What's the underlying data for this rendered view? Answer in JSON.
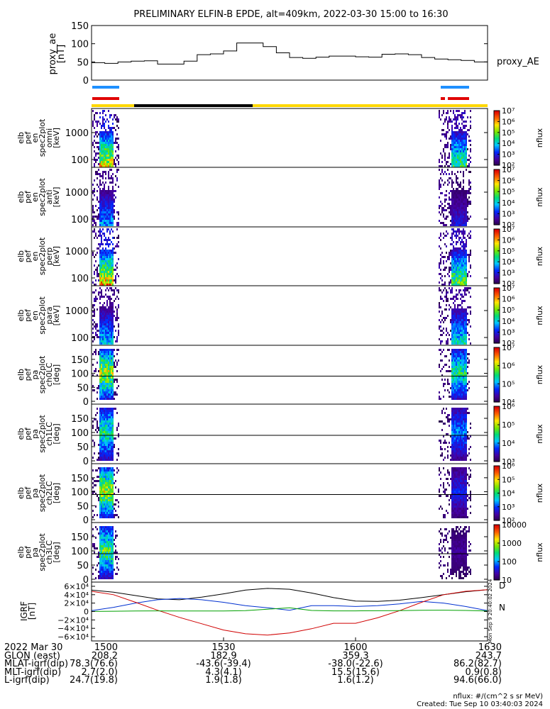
{
  "title": "PRELIMINARY ELFIN-B EPDE, alt=409km, 2022-03-30 15:00 to 16:30",
  "colors": {
    "blue_bar": "#1e90ff",
    "red_bar": "#e00000",
    "yellow_bar": "#ffd700",
    "black_bar": "#000000",
    "igrf_d": "#d00000",
    "igrf_n": "#00a000",
    "igrf_black": "#000000",
    "igrf_blue": "#0030d0",
    "igrf_red": "#d00000",
    "igrf_green": "#00a000"
  },
  "chart_data": [
    {
      "type": "line",
      "id": "proxy_ae",
      "ylabel": "proxy_ae\n[nT]",
      "legend": "proxy_AE",
      "ylim": [
        0,
        150
      ],
      "yticks": [
        "0",
        "50",
        "100",
        "150"
      ],
      "x": [
        0,
        3,
        6,
        9,
        12,
        15,
        18,
        21,
        24,
        27,
        30,
        33,
        36,
        39,
        42,
        45,
        48,
        51,
        54,
        57,
        60,
        63,
        66,
        69,
        72,
        75,
        78,
        81,
        84,
        87,
        90
      ],
      "values": [
        48,
        46,
        50,
        52,
        53,
        44,
        44,
        52,
        70,
        72,
        80,
        102,
        102,
        92,
        75,
        62,
        60,
        63,
        66,
        66,
        64,
        63,
        71,
        72,
        70,
        62,
        58,
        56,
        54,
        50,
        47
      ]
    },
    {
      "type": "heatmap",
      "id": "en-omni",
      "ylabel": [
        "elb",
        "pef",
        "en",
        "spec2plot",
        "omni",
        "[keV]"
      ],
      "yticks": [
        "100",
        "1000"
      ],
      "colorbar": {
        "label": "nflux",
        "ticks": [
          "10²",
          "10³",
          "10⁴",
          "10⁵",
          "10⁶",
          "10⁷"
        ]
      }
    },
    {
      "type": "heatmap",
      "id": "en-anti",
      "ylabel": [
        "elb",
        "pef",
        "en",
        "spec2plot",
        "anti",
        "[keV]"
      ],
      "yticks": [
        "100",
        "1000"
      ],
      "colorbar": {
        "label": "nflux",
        "ticks": [
          "10²",
          "10³",
          "10⁴",
          "10⁵",
          "10⁶",
          "10⁷"
        ]
      }
    },
    {
      "type": "heatmap",
      "id": "en-perp",
      "ylabel": [
        "elb",
        "pef",
        "en",
        "spec2plot",
        "perp",
        "[keV]"
      ],
      "yticks": [
        "100",
        "1000"
      ],
      "colorbar": {
        "label": "nflux",
        "ticks": [
          "10²",
          "10³",
          "10⁴",
          "10⁵",
          "10⁶",
          "10⁷"
        ]
      }
    },
    {
      "type": "heatmap",
      "id": "en-para",
      "ylabel": [
        "elb",
        "pef",
        "en",
        "spec2plot",
        "para",
        "[keV]"
      ],
      "yticks": [
        "100",
        "1000"
      ],
      "colorbar": {
        "label": "nflux",
        "ticks": [
          "10²",
          "10³",
          "10⁴",
          "10⁵",
          "10⁶",
          "10⁷"
        ]
      }
    },
    {
      "type": "heatmap",
      "id": "pa-ch0",
      "ylabel": [
        "elb",
        "pef",
        "pa",
        "spec2plot",
        "ch0LC",
        "[deg]"
      ],
      "yticks": [
        "0",
        "50",
        "100",
        "150"
      ],
      "colorbar": {
        "label": "nflux",
        "ticks": [
          "10⁴",
          "10⁵",
          "10⁶",
          "10⁷"
        ]
      }
    },
    {
      "type": "heatmap",
      "id": "pa-ch1",
      "ylabel": [
        "elb",
        "pef",
        "pa",
        "spec2plot",
        "ch1LC",
        "[deg]"
      ],
      "yticks": [
        "0",
        "50",
        "100",
        "150"
      ],
      "colorbar": {
        "label": "nflux",
        "ticks": [
          "10³",
          "10⁴",
          "10⁵",
          "10⁶"
        ]
      }
    },
    {
      "type": "heatmap",
      "id": "pa-ch2",
      "ylabel": [
        "elb",
        "pef",
        "pa",
        "spec2plot",
        "ch2LC",
        "[deg]"
      ],
      "yticks": [
        "0",
        "50",
        "100",
        "150"
      ],
      "colorbar": {
        "label": "nflux",
        "ticks": [
          "10²",
          "10³",
          "10⁴",
          "10⁵",
          "10⁶"
        ]
      }
    },
    {
      "type": "heatmap",
      "id": "pa-ch3",
      "ylabel": [
        "elb",
        "pef",
        "pa",
        "spec2plot",
        "ch3LC",
        "[deg]"
      ],
      "yticks": [
        "0",
        "50",
        "100",
        "150"
      ],
      "colorbar": {
        "label": "nflux",
        "ticks": [
          "10",
          "100",
          "1000",
          "10000"
        ]
      }
    },
    {
      "type": "line",
      "id": "igrf",
      "ylabel": "IGRF\n[nT]",
      "ylim": [
        -70000,
        70000
      ],
      "yticks": [
        "−6×10⁴",
        "−4×10⁴",
        "−2×10⁴",
        "0",
        "2×10⁴",
        "4×10⁴",
        "6×10⁴"
      ],
      "ytick_values": [
        -60000,
        -40000,
        -20000,
        0,
        20000,
        40000,
        60000
      ],
      "legend": [
        "D",
        "N"
      ],
      "side_label": "Mon Sep 9 20:40:02 2024",
      "x": [
        0,
        5,
        10,
        15,
        20,
        25,
        30,
        35,
        40,
        45,
        50,
        55,
        60,
        65,
        70,
        75,
        80,
        85,
        90
      ],
      "series": [
        {
          "values": [
            51000,
            46000,
            38000,
            30000,
            28000,
            34000,
            42000,
            51000,
            55000,
            53000,
            44000,
            33000,
            25000,
            24000,
            27000,
            33000,
            40000,
            47000,
            52000
          ]
        },
        {
          "values": [
            2000,
            10000,
            20000,
            28000,
            31000,
            28000,
            22000,
            14000,
            9000,
            3000,
            14000,
            14000,
            12000,
            14000,
            18000,
            24000,
            20000,
            12000,
            2000
          ]
        },
        {
          "values": [
            48000,
            40000,
            22000,
            3000,
            -14000,
            -29000,
            -44000,
            -53000,
            -56000,
            -51000,
            -41000,
            -28000,
            -28000,
            -15000,
            2000,
            22000,
            40000,
            48000,
            52000
          ]
        },
        {
          "values": [
            200,
            700,
            1200,
            1500,
            1400,
            1100,
            1400,
            2000,
            5500,
            9000,
            2500,
            1500,
            1500,
            1800,
            2200,
            3000,
            3200,
            2500,
            1200
          ]
        }
      ]
    }
  ],
  "xaxis": {
    "ticks": [
      "1500",
      "1530",
      "1600",
      "1630"
    ],
    "rows": [
      {
        "label": "2022 Mar 30",
        "values": [
          "1500",
          "1530",
          "1600",
          "1630"
        ]
      },
      {
        "label": "GLON (east)",
        "values": [
          "208.2",
          "182.9",
          "359.3",
          "243.7"
        ]
      },
      {
        "label": "MLAT-igrf(dip)",
        "values": [
          "78.3(76.6)",
          "-43.6(-39.4)",
          "-38.0(-22.6)",
          "86.2(82.7)"
        ]
      },
      {
        "label": "MLT-igrf(dip)",
        "values": [
          "2.7(2.0)",
          "4.3(4.1)",
          "15.5(15.6)",
          "0.9(0.8)"
        ]
      },
      {
        "label": "L-igrf(dip)",
        "values": [
          "24.7(19.8)",
          "1.9(1.8)",
          "1.6(1.2)",
          "94.6(66.0)"
        ]
      }
    ]
  },
  "footer": {
    "units": "nflux: #/(cm^2 s sr MeV)",
    "created": "Created: Tue Sep 10 03:40:03 2024"
  }
}
